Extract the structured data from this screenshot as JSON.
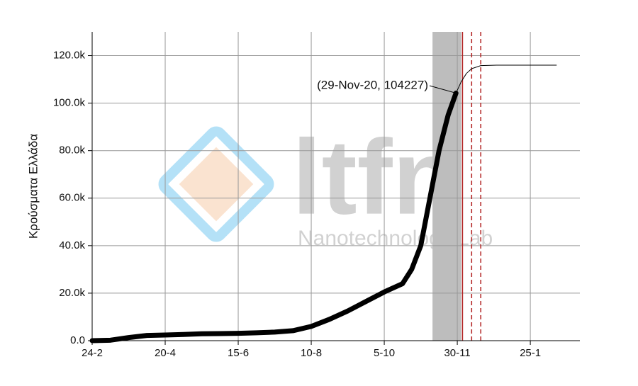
{
  "chart_data": {
    "type": "line",
    "y_label": "Κρούσματα Ελλάδα",
    "annotation": {
      "text": "(29-Nov-20, 104227)",
      "x": 279,
      "y": 104227
    },
    "xlim": [
      0,
      374
    ],
    "ylim": [
      0,
      130000
    ],
    "xticks": [
      {
        "value": 0,
        "label": "24-2"
      },
      {
        "value": 56,
        "label": "20-4"
      },
      {
        "value": 112,
        "label": "15-6"
      },
      {
        "value": 168,
        "label": "10-8"
      },
      {
        "value": 224,
        "label": "5-10"
      },
      {
        "value": 280,
        "label": "30-11"
      },
      {
        "value": 336,
        "label": "25-1"
      }
    ],
    "yticks": [
      {
        "value": 0,
        "label": "0.0"
      },
      {
        "value": 20000,
        "label": "20.0k"
      },
      {
        "value": 40000,
        "label": "40.0k"
      },
      {
        "value": 60000,
        "label": "60.0k"
      },
      {
        "value": 80000,
        "label": "80.0k"
      },
      {
        "value": 100000,
        "label": "100.0k"
      },
      {
        "value": 120000,
        "label": "120.0k"
      }
    ],
    "grid": true,
    "shaded_region": {
      "x": [
        261,
        283
      ],
      "color": "#bdbdbd"
    },
    "vlines": [
      {
        "x": 284,
        "color": "#b22222",
        "dashed": false
      },
      {
        "x": 291,
        "color": "#b22222",
        "dashed": true
      },
      {
        "x": 298,
        "color": "#b22222",
        "dashed": true
      }
    ],
    "series": [
      {
        "color": "#000000",
        "width": 7,
        "x": [
          0,
          14,
          28,
          42,
          56,
          70,
          84,
          98,
          112,
          126,
          140,
          154,
          168,
          182,
          196,
          210,
          224,
          238,
          245,
          252,
          259,
          266,
          273,
          279
        ],
        "values": [
          0,
          200,
          1300,
          2200,
          2400,
          2600,
          2900,
          3000,
          3100,
          3300,
          3600,
          4200,
          6000,
          9000,
          12500,
          16500,
          20500,
          24000,
          30000,
          40000,
          60000,
          80000,
          95000,
          104227
        ]
      },
      {
        "color": "#000000",
        "width": 1,
        "x": [
          279,
          283,
          287,
          291,
          298,
          310,
          330,
          356
        ],
        "values": [
          104227,
          109000,
          112500,
          114500,
          115800,
          116000,
          116000,
          116000
        ]
      }
    ]
  },
  "watermark": {
    "logo": "ltfn",
    "subtitle": "Nanotechnology Lab"
  }
}
